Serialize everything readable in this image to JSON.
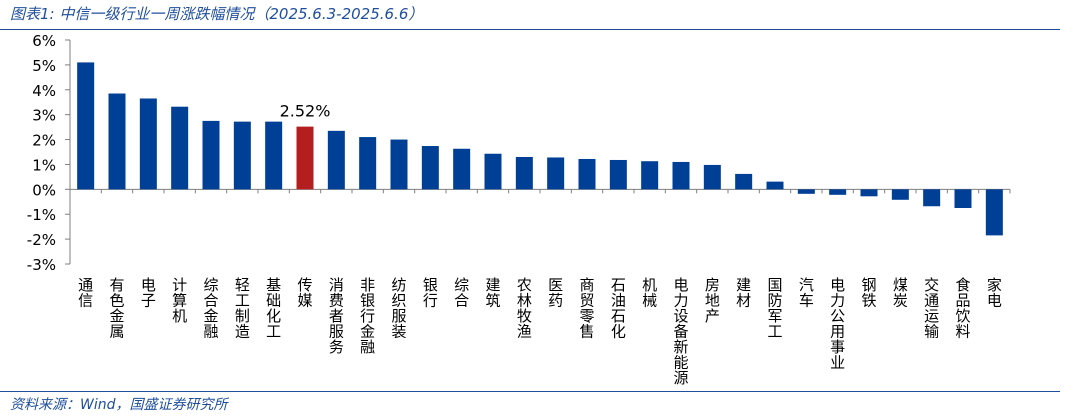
{
  "header": {
    "title": "图表1:  中信一级行业一周涨跌幅情况（2025.6.3-2025.6.6）"
  },
  "footer": {
    "source": "资料来源：Wind，国盛证券研究所"
  },
  "colors": {
    "bar": "#003f96",
    "highlight": "#b41e1e",
    "rule": "#1f4e9c",
    "axis": "#7f7f7f"
  },
  "chart_data": {
    "type": "bar",
    "categories": [
      "通信",
      "有色金属",
      "电子",
      "计算机",
      "综合金融",
      "轻工制造",
      "基础化工",
      "传媒",
      "消费者服务",
      "非银行金融",
      "纺织服装",
      "银行",
      "综合",
      "建筑",
      "农林牧渔",
      "医药",
      "商贸零售",
      "石油石化",
      "机械",
      "电力设备新能源",
      "房地产",
      "建材",
      "国防军工",
      "汽车",
      "电力公用事业",
      "钢铁",
      "煤炭",
      "交通运输",
      "食品饮料",
      "家电"
    ],
    "values": [
      5.1,
      3.85,
      3.65,
      3.32,
      2.75,
      2.72,
      2.72,
      2.52,
      2.35,
      2.1,
      2.0,
      1.74,
      1.63,
      1.43,
      1.3,
      1.28,
      1.22,
      1.18,
      1.13,
      1.1,
      0.98,
      0.62,
      0.31,
      -0.18,
      -0.22,
      -0.28,
      -0.42,
      -0.68,
      -0.75,
      -1.85
    ],
    "highlight_category": "传媒",
    "annotation": "2.52%",
    "ylim": [
      -3,
      6
    ],
    "yticks": [
      "6%",
      "5%",
      "4%",
      "3%",
      "2%",
      "1%",
      "0%",
      "-1%",
      "-2%",
      "-3%"
    ],
    "xlabel": "",
    "ylabel": "",
    "grid": false,
    "legend": "none"
  }
}
